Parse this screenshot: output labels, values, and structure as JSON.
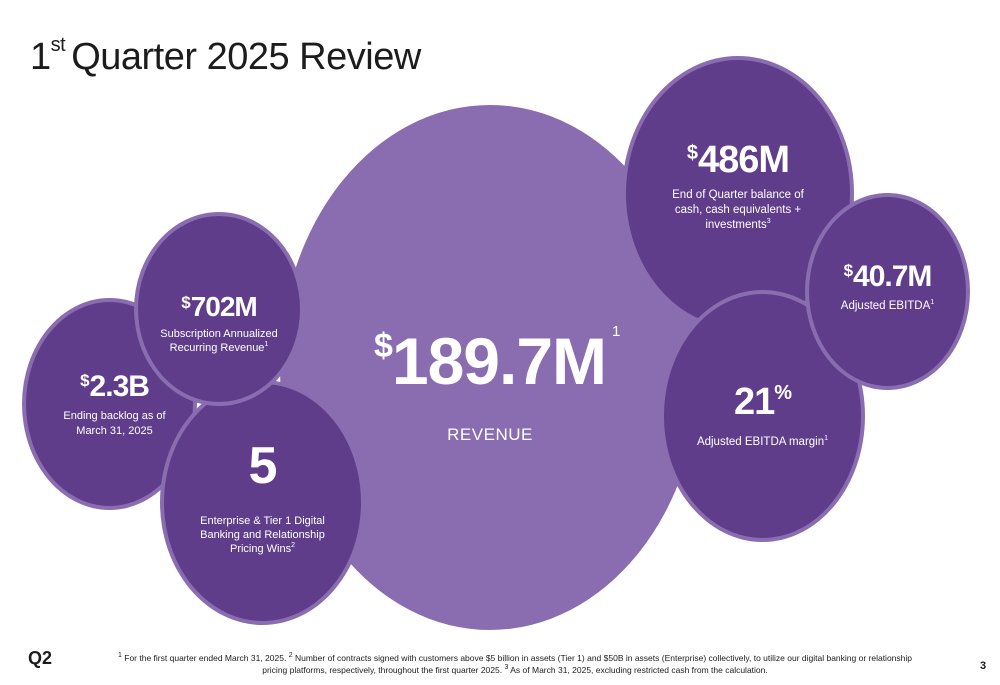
{
  "title": {
    "main": "Quarter 2025 Review",
    "number": "1",
    "suffix": "st"
  },
  "revenue": {
    "currency": "$",
    "value": "189.7M",
    "label": "REVENUE",
    "note": "1"
  },
  "cash": {
    "currency": "$",
    "value": "486M",
    "desc": "End of Quarter balance of cash, cash equivalents + investments",
    "note": "3"
  },
  "ebitda": {
    "currency": "$",
    "value": "40.7M",
    "desc": "Adjusted EBITDA",
    "note": "1"
  },
  "margin": {
    "value": "21",
    "unit": "%",
    "desc": "Adjusted EBITDA margin",
    "note": "1"
  },
  "arr": {
    "currency": "$",
    "value": "702M",
    "desc": "Subscription Annualized Recurring Revenue",
    "note": "1"
  },
  "backlog": {
    "currency": "$",
    "value": "2.3B",
    "desc": "Ending backlog as of March 31, 2025"
  },
  "wins": {
    "value": "5",
    "desc": "Enterprise & Tier 1 Digital Banking and Relationship Pricing Wins",
    "note": "2"
  },
  "footer": {
    "logo": "Q2",
    "fn1_mark": "1",
    "fn1": " For the first quarter ended March 31, 2025. ",
    "fn2_mark": "2",
    "fn2": " Number of contracts signed with customers above $5 billion in assets (Tier 1) and $50B in assets (Enterprise) collectively, to utilize our digital banking or relationship pricing platforms, respectively, throughout the first quarter 2025. ",
    "fn3_mark": "3",
    "fn3": " As of March 31, 2025, excluding restricted cash from the calculation.",
    "page": "3"
  },
  "colors": {
    "dark_bubble": "#5f3d8a",
    "light_bubble": "#8a6db0",
    "text": "#1c1c1c"
  }
}
